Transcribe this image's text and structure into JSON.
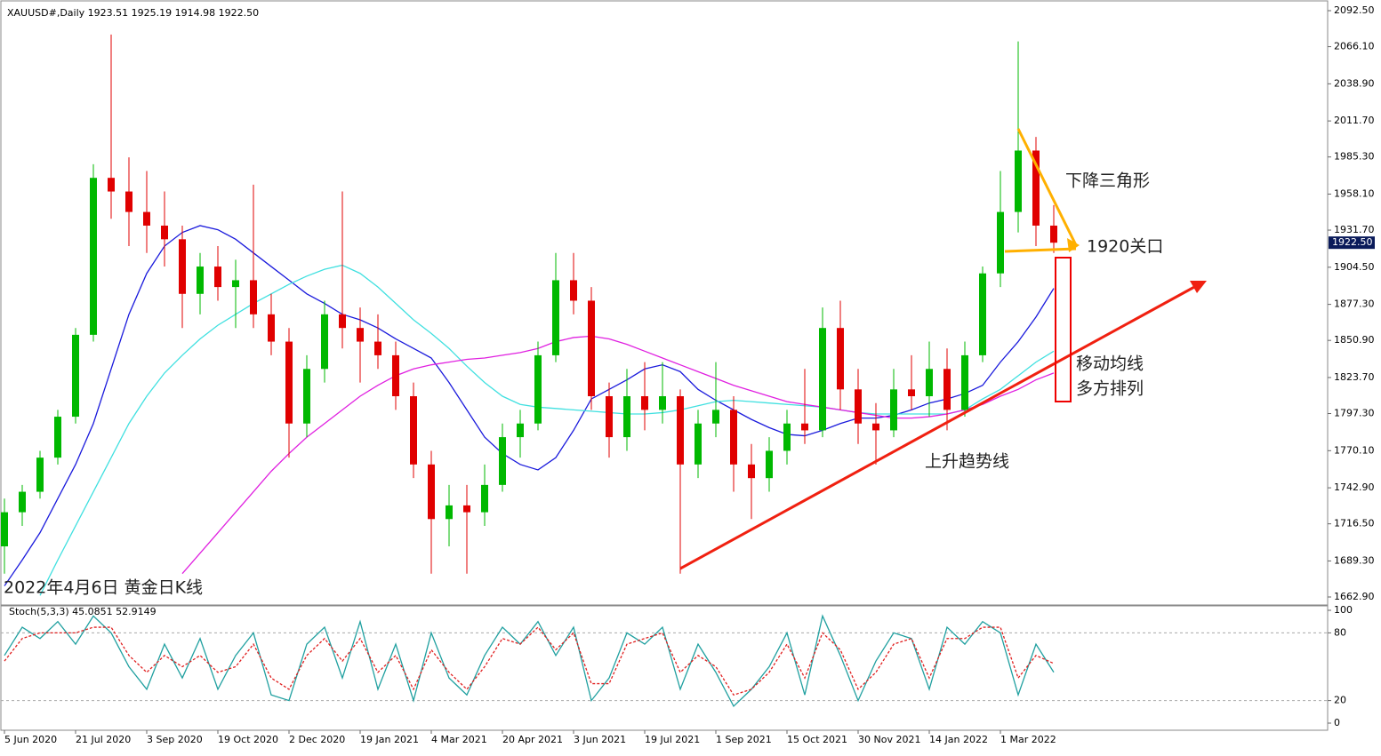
{
  "chart_data": [
    {
      "type": "candlestick",
      "header": "XAUUSD#,Daily  1923.51 1925.19 1914.98 1922.50",
      "caption": "2022年4月6日 黄金日K线",
      "annotations": [
        "下降三角形",
        "1920关口",
        "移动均线",
        "多方排列",
        "上升趋势线"
      ],
      "categories": [
        "5 Jun 2020",
        null,
        null,
        null,
        "21 Jul 2020",
        null,
        null,
        null,
        "3 Sep 2020",
        null,
        null,
        null,
        "19 Oct 2020",
        null,
        null,
        null,
        "2 Dec 2020",
        null,
        null,
        null,
        "19 Jan 2021",
        null,
        null,
        null,
        "4 Mar 2021",
        null,
        null,
        null,
        "20 Apr 2021",
        null,
        null,
        null,
        "3 Jun 2021",
        null,
        null,
        null,
        "19 Jul 2021",
        null,
        null,
        null,
        "1 Sep 2021",
        null,
        null,
        null,
        "15 Oct 2021",
        null,
        null,
        null,
        "30 Nov 2021",
        null,
        null,
        null,
        "14 Jan 2022",
        null,
        null,
        null,
        "1 Mar 2022",
        null,
        null,
        null
      ],
      "open": [
        1700,
        1725,
        1740,
        1765,
        1795,
        1855,
        1970,
        1960,
        1945,
        1935,
        1925,
        1885,
        1905,
        1890,
        1895,
        1870,
        1850,
        1790,
        1830,
        1870,
        1860,
        1850,
        1840,
        1810,
        1760,
        1720,
        1730,
        1725,
        1745,
        1780,
        1790,
        1840,
        1895,
        1880,
        1810,
        1780,
        1810,
        1800,
        1810,
        1760,
        1790,
        1800,
        1760,
        1750,
        1770,
        1790,
        1785,
        1860,
        1815,
        1790,
        1785,
        1815,
        1810,
        1830,
        1800,
        1840,
        1900,
        1945,
        1990,
        1935
      ],
      "high": [
        1735,
        1745,
        1770,
        1800,
        1860,
        1980,
        2075,
        1985,
        1975,
        1960,
        1935,
        1915,
        1920,
        1910,
        1965,
        1885,
        1860,
        1840,
        1880,
        1960,
        1875,
        1870,
        1850,
        1820,
        1770,
        1745,
        1745,
        1760,
        1790,
        1800,
        1850,
        1915,
        1915,
        1890,
        1820,
        1830,
        1835,
        1835,
        1815,
        1800,
        1835,
        1810,
        1775,
        1780,
        1800,
        1830,
        1875,
        1880,
        1830,
        1805,
        1830,
        1840,
        1850,
        1845,
        1850,
        1905,
        1975,
        2070,
        2000,
        1950
      ],
      "low": [
        1680,
        1715,
        1735,
        1760,
        1790,
        1850,
        1940,
        1920,
        1915,
        1905,
        1860,
        1870,
        1880,
        1860,
        1860,
        1840,
        1765,
        1780,
        1820,
        1845,
        1820,
        1830,
        1800,
        1750,
        1680,
        1700,
        1680,
        1715,
        1740,
        1765,
        1785,
        1835,
        1870,
        1800,
        1765,
        1770,
        1785,
        1790,
        1680,
        1750,
        1780,
        1740,
        1720,
        1740,
        1760,
        1775,
        1780,
        1800,
        1775,
        1760,
        1780,
        1800,
        1795,
        1785,
        1795,
        1835,
        1890,
        1930,
        1920,
        1915
      ],
      "close": [
        1725,
        1740,
        1765,
        1795,
        1855,
        1970,
        1960,
        1945,
        1935,
        1925,
        1885,
        1905,
        1890,
        1895,
        1870,
        1850,
        1790,
        1830,
        1870,
        1860,
        1850,
        1840,
        1810,
        1760,
        1720,
        1730,
        1725,
        1745,
        1780,
        1790,
        1840,
        1895,
        1880,
        1810,
        1780,
        1810,
        1800,
        1810,
        1760,
        1790,
        1800,
        1760,
        1750,
        1770,
        1790,
        1785,
        1860,
        1815,
        1790,
        1785,
        1815,
        1810,
        1830,
        1800,
        1840,
        1900,
        1945,
        1990,
        1935,
        1922.5
      ],
      "up_color": "#00b800",
      "down_color": "#e00000",
      "series": [
        {
          "name": "MA blue",
          "color": "#1a1adc",
          "values": [
            1671,
            1690,
            1710,
            1735,
            1760,
            1790,
            1830,
            1870,
            1900,
            1920,
            1930,
            1935,
            1932,
            1925,
            1915,
            1905,
            1895,
            1885,
            1878,
            1870,
            1866,
            1860,
            1852,
            1845,
            1838,
            1820,
            1800,
            1780,
            1768,
            1760,
            1756,
            1765,
            1785,
            1808,
            1815,
            1822,
            1830,
            1833,
            1828,
            1815,
            1807,
            1800,
            1793,
            1787,
            1782,
            1781,
            1785,
            1790,
            1794,
            1794,
            1796,
            1800,
            1805,
            1808,
            1812,
            1818,
            1835,
            1850,
            1868,
            1889
          ]
        },
        {
          "name": "MA cyan",
          "color": "#40e0e0",
          "values": [
            null,
            null,
            1664,
            1690,
            1715,
            1740,
            1765,
            1790,
            1810,
            1827,
            1840,
            1852,
            1862,
            1870,
            1878,
            1885,
            1892,
            1898,
            1903,
            1906,
            1900,
            1890,
            1878,
            1866,
            1856,
            1845,
            1832,
            1820,
            1810,
            1804,
            1802,
            1801,
            1800,
            1799,
            1798,
            1797,
            1797,
            1798,
            1800,
            1803,
            1806,
            1807,
            1806,
            1805,
            1804,
            1803,
            1802,
            1800,
            1798,
            1797,
            1797,
            1797,
            1797,
            1797,
            1800,
            1808,
            1815,
            1825,
            1835,
            1843
          ]
        },
        {
          "name": "MA magenta",
          "color": "#e020e0",
          "values": [
            null,
            null,
            null,
            null,
            null,
            null,
            null,
            null,
            null,
            null,
            1680,
            1695,
            1710,
            1725,
            1740,
            1755,
            1768,
            1780,
            1790,
            1800,
            1810,
            1818,
            1825,
            1830,
            1833,
            1835,
            1837,
            1838,
            1840,
            1842,
            1845,
            1850,
            1853,
            1854,
            1852,
            1848,
            1843,
            1838,
            1833,
            1828,
            1823,
            1818,
            1814,
            1810,
            1806,
            1804,
            1802,
            1800,
            1798,
            1796,
            1794,
            1794,
            1795,
            1797,
            1800,
            1804,
            1810,
            1815,
            1822,
            1827
          ]
        }
      ],
      "ylim": [
        1662.9,
        2092.5
      ],
      "yticks": [
        {
          "value": 1662.9,
          "label": "1662.90"
        },
        {
          "value": 1689.3,
          "label": "1689.30"
        },
        {
          "value": 1716.5,
          "label": "1716.50"
        },
        {
          "value": 1742.9,
          "label": "1742.90"
        },
        {
          "value": 1770.1,
          "label": "1770.10"
        },
        {
          "value": 1797.3,
          "label": "1797.30"
        },
        {
          "value": 1823.7,
          "label": "1823.70"
        },
        {
          "value": 1850.9,
          "label": "1850.90"
        },
        {
          "value": 1877.3,
          "label": "1877.30"
        },
        {
          "value": 1904.5,
          "label": "1904.50"
        },
        {
          "value": 1931.7,
          "label": "1931.70"
        },
        {
          "value": 1958.1,
          "label": "1958.10"
        },
        {
          "value": 1985.3,
          "label": "1985.30"
        },
        {
          "value": 2011.7,
          "label": "2011.70"
        },
        {
          "value": 2038.9,
          "label": "2038.90"
        },
        {
          "value": 2066.1,
          "label": "2066.10"
        },
        {
          "value": 2092.5,
          "label": "2092.50"
        }
      ],
      "current_price": {
        "value": 1922.5,
        "label": "1922.50"
      }
    },
    {
      "type": "line",
      "title": "Stoch(5,3,3) 45.0851 52.9149",
      "series": [
        {
          "name": "main",
          "color": "#20a0a0",
          "values": [
            60,
            85,
            75,
            90,
            70,
            95,
            80,
            50,
            30,
            70,
            40,
            75,
            30,
            60,
            80,
            25,
            20,
            70,
            85,
            40,
            90,
            30,
            70,
            20,
            80,
            40,
            25,
            60,
            85,
            70,
            90,
            60,
            85,
            20,
            40,
            80,
            70,
            85,
            30,
            70,
            45,
            15,
            30,
            50,
            80,
            25,
            95,
            60,
            20,
            55,
            80,
            75,
            30,
            85,
            70,
            90,
            80,
            25,
            70,
            45.0851
          ]
        },
        {
          "name": "signal",
          "color": "#e02020",
          "values": [
            55,
            75,
            80,
            80,
            80,
            85,
            85,
            60,
            45,
            60,
            50,
            60,
            45,
            50,
            70,
            40,
            30,
            60,
            75,
            55,
            75,
            45,
            60,
            30,
            65,
            45,
            30,
            50,
            75,
            70,
            85,
            65,
            80,
            35,
            35,
            70,
            75,
            80,
            45,
            60,
            50,
            25,
            30,
            45,
            70,
            40,
            80,
            65,
            30,
            45,
            70,
            75,
            40,
            75,
            75,
            85,
            85,
            40,
            60,
            52.9149
          ]
        }
      ],
      "ylim": [
        0,
        100
      ],
      "yticks": [
        0,
        20,
        80,
        100
      ],
      "levels": [
        20,
        80
      ]
    }
  ]
}
